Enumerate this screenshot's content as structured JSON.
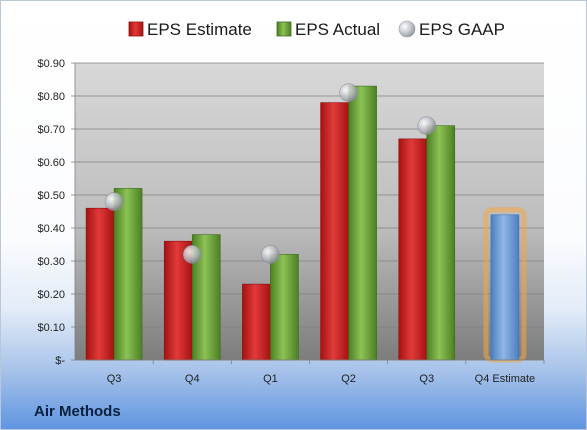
{
  "company": "Air Methods",
  "colors": {
    "estimate": "#d42a2a",
    "actual": "#6fa53a",
    "gaap": "#b8bcc2",
    "forecast": "#6f9fd8",
    "forecast_glow": "#f5a53c"
  },
  "chart_data": {
    "type": "bar",
    "categories": [
      "Q3",
      "Q4",
      "Q1",
      "Q2",
      "Q3",
      "Q4 Estimate"
    ],
    "series": [
      {
        "name": "EPS Estimate",
        "values": [
          0.46,
          0.36,
          0.23,
          0.78,
          0.67,
          null
        ]
      },
      {
        "name": "EPS Actual",
        "values": [
          0.52,
          0.38,
          0.32,
          0.83,
          0.71,
          null
        ]
      },
      {
        "name": "EPS GAAP",
        "marker": "circle",
        "values": [
          0.48,
          0.32,
          0.32,
          0.81,
          0.71,
          null
        ]
      }
    ],
    "forecast": {
      "category": "Q4 Estimate",
      "value": 0.44
    },
    "y_ticks": [
      0,
      0.1,
      0.2,
      0.3,
      0.4,
      0.5,
      0.6,
      0.7,
      0.8,
      0.9
    ],
    "y_tick_labels": [
      "$-",
      "$0.10",
      "$0.20",
      "$0.30",
      "$0.40",
      "$0.50",
      "$0.60",
      "$0.70",
      "$0.80",
      "$0.90"
    ],
    "ylim": [
      0,
      0.9
    ],
    "legend_position": "top",
    "grid": true
  }
}
